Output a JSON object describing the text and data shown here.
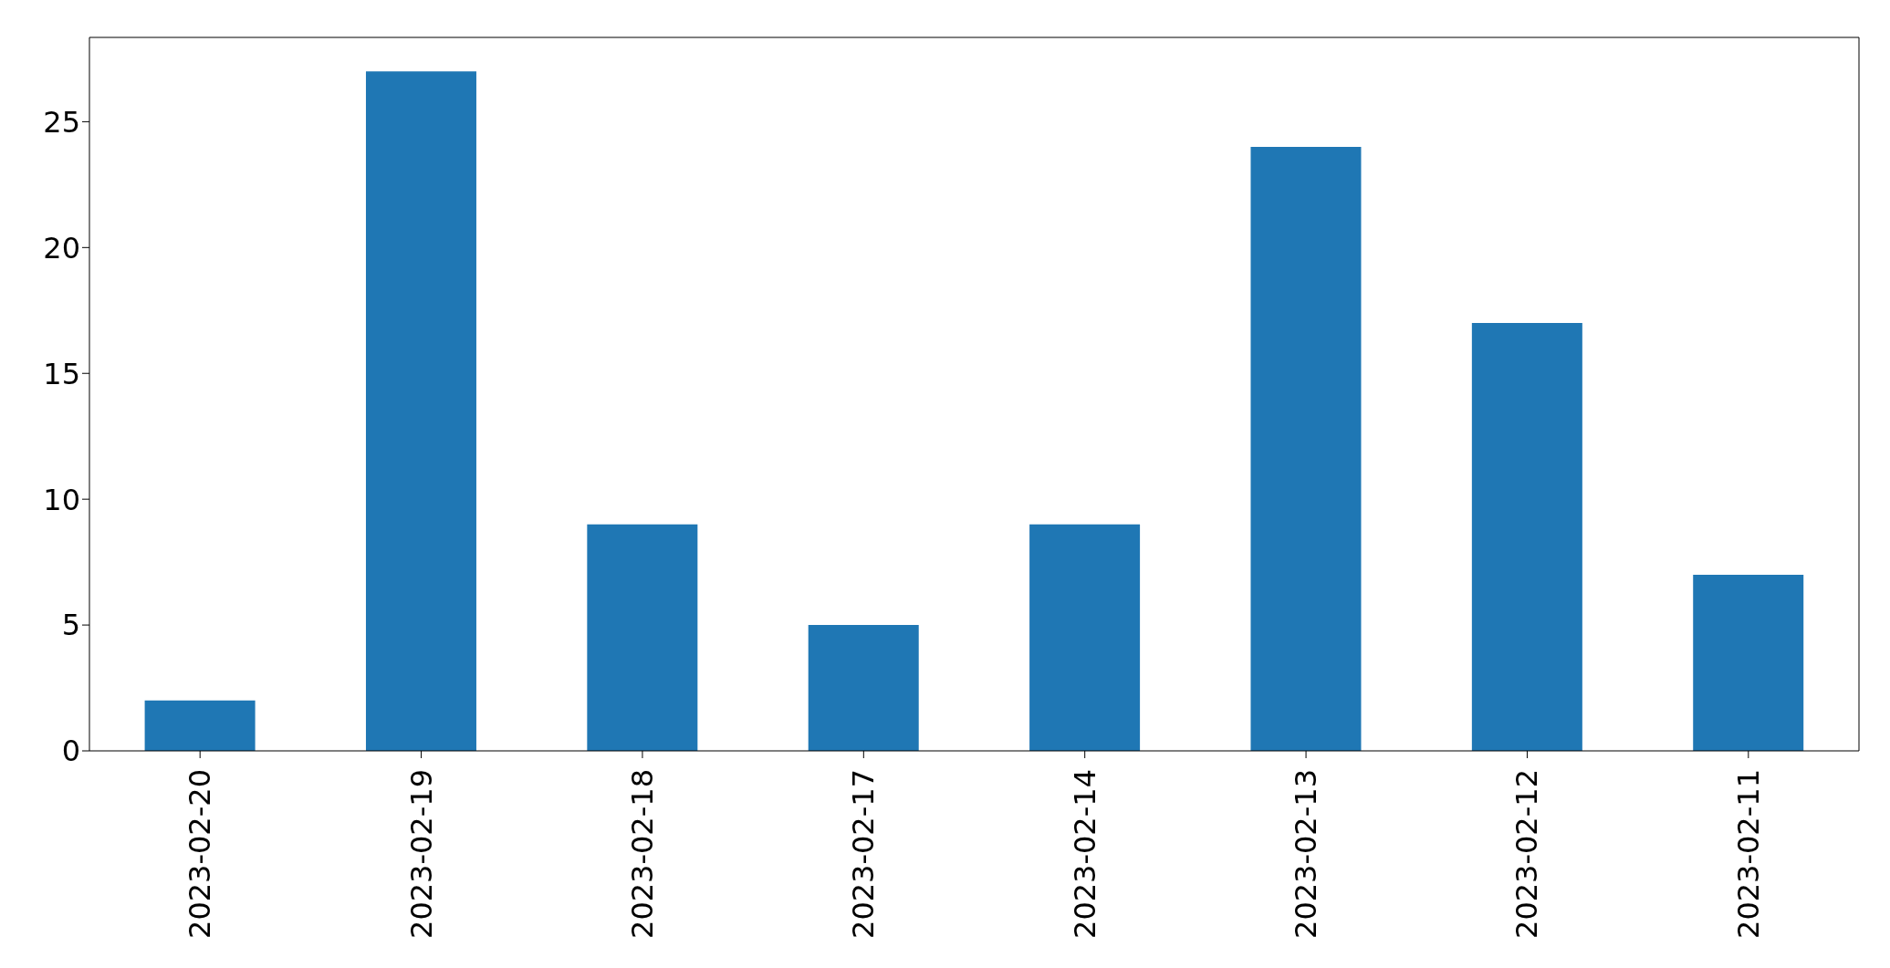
{
  "chart_data": {
    "type": "bar",
    "categories": [
      "2023-02-20",
      "2023-02-19",
      "2023-02-18",
      "2023-02-17",
      "2023-02-14",
      "2023-02-13",
      "2023-02-12",
      "2023-02-11"
    ],
    "values": [
      2,
      27,
      9,
      5,
      9,
      24,
      17,
      7
    ],
    "color": "#1f77b4",
    "ylim": [
      0,
      28.35
    ],
    "yticks": [
      0,
      5,
      10,
      15,
      20,
      25
    ],
    "grid": false,
    "legend": false
  }
}
